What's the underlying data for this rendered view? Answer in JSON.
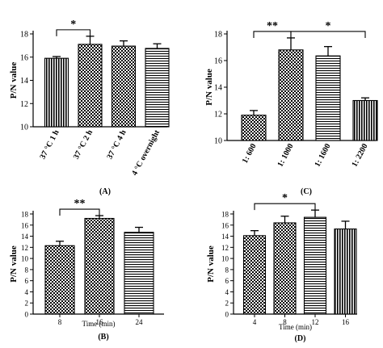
{
  "chart_data": [
    {
      "panel": "(A)",
      "type": "bar",
      "ylabel": "P/N value",
      "xlabel": "",
      "ylim": [
        10,
        18
      ],
      "yticks": [
        10,
        12,
        14,
        16,
        18
      ],
      "categories": [
        "37 °C 1 h",
        "37 °C 2 h",
        "37 °C 4 h",
        "4 °C overnight"
      ],
      "values": [
        15.9,
        17.1,
        16.95,
        16.75
      ],
      "errors": [
        0.15,
        0.7,
        0.45,
        0.4
      ],
      "patterns": [
        "vstripes",
        "checker",
        "checker",
        "hstripes"
      ],
      "annotations": [
        {
          "from": 0,
          "to": 1,
          "label": "*"
        }
      ]
    },
    {
      "panel": "(C)",
      "type": "bar",
      "ylabel": "P/N value",
      "xlabel": "",
      "ylim": [
        10,
        18
      ],
      "yticks": [
        10,
        12,
        14,
        16,
        18
      ],
      "categories": [
        "1: 600",
        "1: 1000",
        "1: 1600",
        "1: 2200"
      ],
      "values": [
        11.9,
        16.8,
        16.35,
        13.0
      ],
      "errors": [
        0.35,
        0.9,
        0.7,
        0.2
      ],
      "patterns": [
        "checker",
        "checker",
        "hstripes",
        "vstripes"
      ],
      "annotations": [
        {
          "from": 0,
          "to": 1,
          "label": "**"
        },
        {
          "from": 1,
          "to": 3,
          "label": "*"
        }
      ]
    },
    {
      "panel": "(B)",
      "type": "bar",
      "ylabel": "P/N value",
      "xlabel": "Time (min)",
      "ylim": [
        0,
        18
      ],
      "yticks": [
        0,
        2,
        4,
        6,
        8,
        10,
        12,
        14,
        16,
        18
      ],
      "categories": [
        "8",
        "16",
        "24"
      ],
      "values": [
        12.3,
        17.2,
        14.7
      ],
      "errors": [
        0.8,
        0.5,
        0.9
      ],
      "patterns": [
        "checker",
        "checker",
        "hstripes"
      ],
      "annotations": [
        {
          "from": 0,
          "to": 1,
          "label": "**"
        }
      ]
    },
    {
      "panel": "(D)",
      "type": "bar",
      "ylabel": "P/N value",
      "xlabel": "Time (min)",
      "ylim": [
        0,
        18
      ],
      "yticks": [
        0,
        2,
        4,
        6,
        8,
        10,
        12,
        14,
        16,
        18
      ],
      "categories": [
        "4",
        "8",
        "12",
        "16"
      ],
      "values": [
        14.1,
        16.4,
        17.4,
        15.3
      ],
      "errors": [
        0.9,
        1.2,
        1.3,
        1.4
      ],
      "patterns": [
        "checker",
        "checker",
        "hstripes",
        "vstripes"
      ],
      "annotations": [
        {
          "from": 0,
          "to": 2,
          "label": "*"
        }
      ]
    }
  ]
}
